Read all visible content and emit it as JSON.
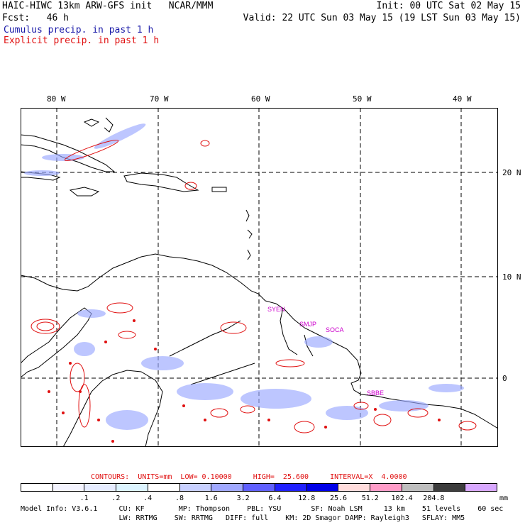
{
  "header": {
    "line1_left": "HAIC-HIWC 13km ARW-GFS init   NCAR/MMM",
    "line1_right": "Init: 00 UTC Sat 02 May 15",
    "line2_left": "Fcst:   46 h",
    "line2_right": "Valid: 22 UTC Sun 03 May 15 (19 LST Sun 03 May 15)",
    "legend_cumulus": "Cumulus precip. in past 1 h",
    "legend_explicit": "Explicit precip. in past 1 h"
  },
  "map": {
    "lon_labels": [
      "80 W",
      "70 W",
      "60 W",
      "50 W",
      "40 W"
    ],
    "lat_labels": [
      "20 N",
      "10 N",
      "0"
    ],
    "place_labels": [
      "SYEN",
      "SMJP",
      "SOCA",
      "SBBE"
    ],
    "colors": {
      "cumulus": "#1a1aa8",
      "explicit": "#e01010",
      "coast": "#000000"
    }
  },
  "contours": {
    "label": "CONTOURS:  UNITS=mm  LOW= 0.10000     HIGH=  25.600     INTERVAL=X  4.0000"
  },
  "colorbar": {
    "colors": [
      "#ffffff",
      "#f4f4ff",
      "#e6ecff",
      "#dcf4ff",
      "#ffffff",
      "#c8d0ff",
      "#a0a8ff",
      "#6060ff",
      "#2020ff",
      "#0000e8",
      "#ffdcdc",
      "#ff9cc8",
      "#bebebe",
      "#3c3c3c",
      "#d8a8ff"
    ],
    "ticks": [
      ".1",
      ".2",
      ".4",
      ".8",
      "1.6",
      "3.2",
      "6.4",
      "12.8",
      "25.6",
      "51.2",
      "102.4",
      "204.8"
    ],
    "unit": "mm"
  },
  "model_info": {
    "line1": "Model Info: V3.6.1     CU: KF        MP: Thompson    PBL: YSU       SF: Noah LSM     13 km    51 levels    60 sec",
    "line2": "                       LW: RRTMG    SW: RRTMG   DIFF: full    KM: 2D Smagor DAMP: Rayleigh3   SFLAY: MM5"
  }
}
